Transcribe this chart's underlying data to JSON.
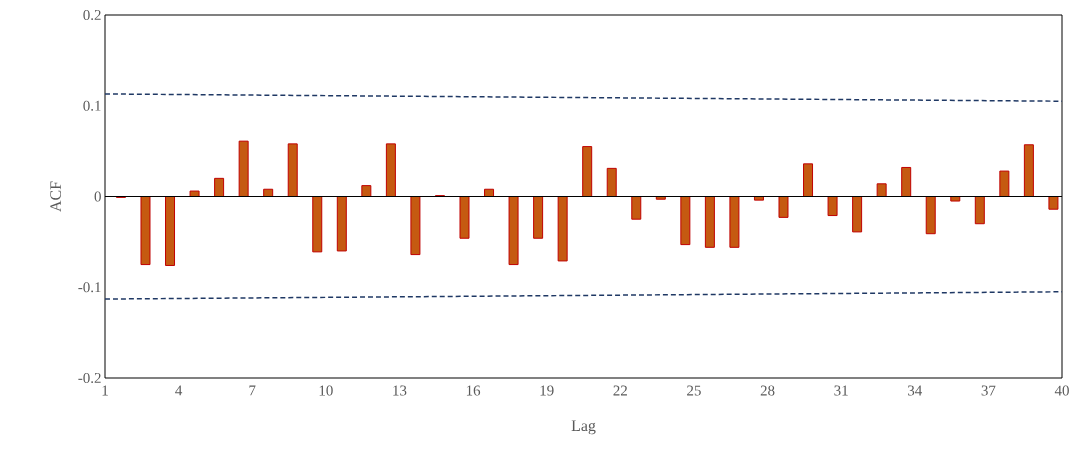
{
  "chart_data": {
    "type": "bar",
    "xlabel": "Lag",
    "ylabel": "ACF",
    "xlim": [
      1,
      40
    ],
    "xticks": [
      1,
      4,
      7,
      10,
      13,
      16,
      19,
      22,
      25,
      28,
      31,
      34,
      37,
      40
    ],
    "ylim": [
      -0.2,
      0.2
    ],
    "yticks": [
      -0.2,
      -0.1,
      0,
      0.1,
      0.2
    ],
    "series": [
      {
        "color": "#c55a11",
        "x": [
          1.65,
          2.65,
          3.65,
          4.65,
          5.65,
          6.65,
          7.65,
          8.65,
          9.65,
          10.65,
          11.65,
          12.65,
          13.65,
          14.65,
          15.65,
          16.65,
          17.65,
          18.65,
          19.65,
          20.65,
          21.65,
          22.65,
          23.65,
          24.65,
          25.65,
          26.65,
          27.65,
          28.65,
          29.65,
          30.65,
          31.65,
          32.65,
          33.65,
          34.65,
          35.65,
          36.65,
          37.65,
          38.65,
          39.65
        ],
        "values": [
          -0.001,
          -0.075,
          -0.076,
          0.006,
          0.02,
          0.061,
          0.008,
          0.058,
          -0.061,
          -0.06,
          0.012,
          0.058,
          -0.064,
          0.001,
          -0.046,
          0.008,
          -0.075,
          -0.046,
          -0.071,
          0.055,
          0.031,
          -0.025,
          -0.003,
          -0.053,
          -0.056,
          -0.056,
          -0.004,
          -0.023,
          0.036,
          -0.021,
          -0.039,
          0.014,
          0.032,
          -0.041,
          -0.005,
          -0.03,
          0.028,
          0.057,
          -0.014
        ]
      },
      {
        "type": "line",
        "color": "#1f3864",
        "line_style": "dashed",
        "marker": "none",
        "x": [
          1,
          40
        ],
        "values": [
          0.113,
          0.105
        ]
      },
      {
        "type": "line",
        "color": "#1f3864",
        "line_style": "dashed",
        "marker": "none",
        "x": [
          1,
          40
        ],
        "values": [
          -0.113,
          -0.105
        ]
      }
    ]
  }
}
